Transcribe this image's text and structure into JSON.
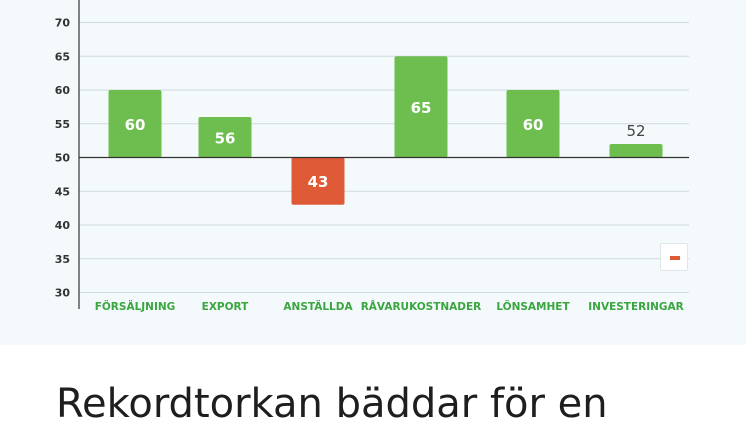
{
  "chart_data": {
    "type": "bar",
    "categories": [
      "FÖRSÄLJNING",
      "EXPORT",
      "ANSTÄLLDA",
      "RÅVARUKOSTNADER",
      "LÖNSAMHET",
      "INVESTERINGAR"
    ],
    "values": [
      60,
      56,
      43,
      65,
      60,
      52
    ],
    "value_labels": [
      "60",
      "56",
      "43",
      "65",
      "60",
      "52"
    ],
    "baseline": 50,
    "ylim": [
      30,
      72
    ],
    "yticks": [
      30,
      35,
      40,
      45,
      50,
      55,
      60,
      65,
      70
    ],
    "ytick_labels": [
      "30",
      "35",
      "40",
      "45",
      "50",
      "55",
      "60",
      "65",
      "70"
    ],
    "title": "",
    "xlabel": "",
    "ylabel": "",
    "grid": true,
    "legend": {
      "position": "bottom-right",
      "symbol": "–"
    }
  },
  "colors": {
    "positive": "#6dbe4f",
    "negative": "#de5a36",
    "category_label": "#3aa63f",
    "axis": "#333333",
    "grid": "#cfd9de",
    "tick_label": "#333333"
  },
  "article": {
    "heading": "Rekordtorkan bäddar för en"
  }
}
